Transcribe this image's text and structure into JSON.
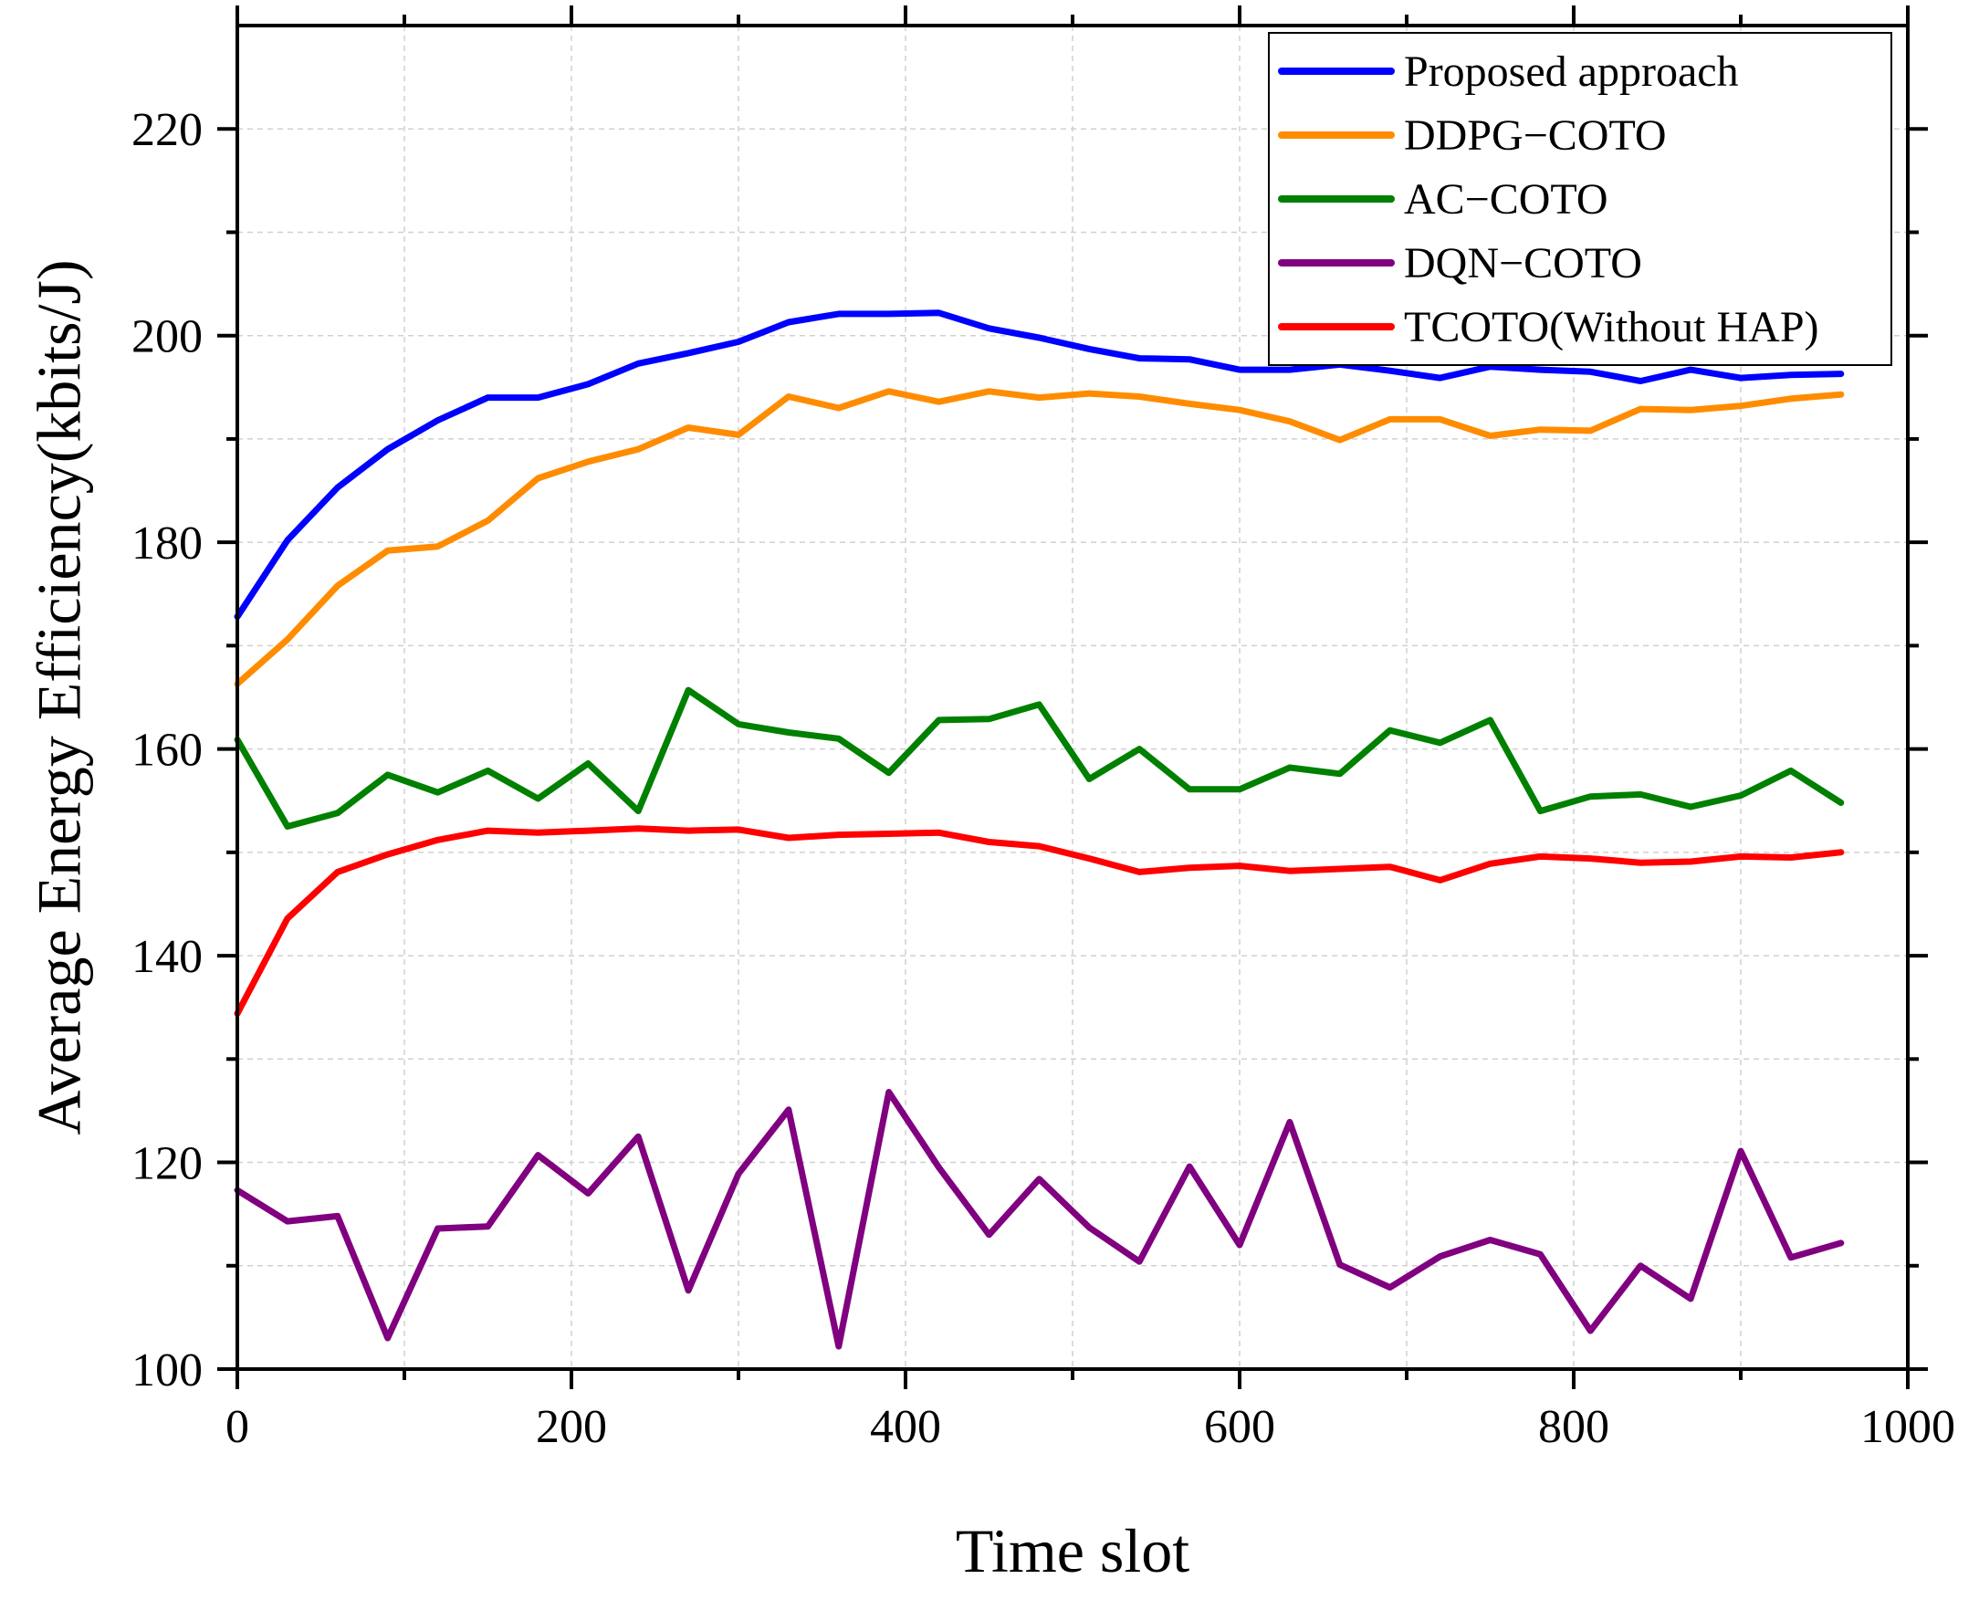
{
  "chart_data": {
    "type": "line",
    "title": "",
    "xlabel": "Time slot",
    "ylabel": "Average Energy Efficiency(kbits/J)",
    "xlim": [
      0,
      1000
    ],
    "ylim": [
      100,
      230
    ],
    "xticks": [
      0,
      200,
      400,
      600,
      800,
      1000
    ],
    "yticks": [
      100,
      120,
      140,
      160,
      180,
      200,
      220
    ],
    "xtick_labels": [
      "0",
      "200",
      "400",
      "600",
      "800",
      "1000"
    ],
    "ytick_labels": [
      "100",
      "120",
      "140",
      "160",
      "180",
      "200",
      "220"
    ],
    "grid": true,
    "legend_position": "top-right",
    "x": [
      0,
      30,
      60,
      90,
      120,
      150,
      180,
      210,
      240,
      270,
      300,
      330,
      360,
      390,
      420,
      450,
      480,
      510,
      540,
      570,
      600,
      630,
      660,
      690,
      720,
      750,
      780,
      810,
      840,
      870,
      900,
      930,
      960
    ],
    "series": [
      {
        "name": "Proposed approach",
        "color": "#0000ff",
        "values": [
          172.8,
          180.2,
          185.3,
          189.0,
          191.8,
          194.0,
          194.0,
          195.3,
          197.3,
          198.3,
          199.4,
          201.3,
          202.1,
          202.1,
          202.2,
          200.7,
          199.8,
          198.7,
          197.8,
          197.7,
          196.7,
          196.7,
          197.2,
          196.6,
          195.9,
          197.0,
          196.7,
          196.5,
          195.6,
          196.7,
          195.9,
          196.2,
          196.3
        ]
      },
      {
        "name": "DDPG−COTO",
        "color": "#ff8c00",
        "values": [
          166.3,
          170.6,
          175.8,
          179.2,
          179.6,
          182.1,
          186.2,
          187.8,
          189.0,
          191.1,
          190.4,
          194.1,
          193.0,
          194.6,
          193.6,
          194.6,
          194.0,
          194.4,
          194.1,
          193.4,
          192.8,
          191.7,
          189.9,
          191.9,
          191.9,
          190.3,
          190.9,
          190.8,
          192.9,
          192.8,
          193.2,
          193.9,
          194.3
        ]
      },
      {
        "name": "AC−COTO",
        "color": "#008000",
        "values": [
          160.9,
          152.5,
          153.8,
          157.5,
          155.8,
          157.9,
          155.2,
          158.6,
          154.0,
          165.7,
          162.4,
          161.6,
          161.0,
          157.7,
          162.8,
          162.9,
          164.3,
          157.1,
          160.0,
          156.1,
          156.1,
          158.2,
          157.6,
          161.8,
          160.6,
          162.8,
          154.0,
          155.4,
          155.6,
          154.4,
          155.5,
          157.9,
          154.8
        ]
      },
      {
        "name": "DQN−COTO",
        "color": "#800080",
        "values": [
          117.3,
          114.3,
          114.8,
          103.0,
          113.6,
          113.8,
          120.7,
          117.0,
          122.5,
          107.6,
          118.9,
          125.1,
          102.2,
          126.8,
          119.5,
          113.0,
          118.4,
          113.7,
          110.4,
          119.6,
          112.0,
          123.9,
          110.1,
          107.9,
          110.9,
          112.5,
          111.1,
          103.7,
          110.0,
          106.8,
          121.1,
          110.8,
          112.2
        ]
      },
      {
        "name": "TCOTO(Without HAP)",
        "color": "#ff0000",
        "values": [
          134.4,
          143.6,
          148.1,
          149.8,
          151.2,
          152.1,
          151.9,
          152.1,
          152.3,
          152.1,
          152.2,
          151.4,
          151.7,
          151.8,
          151.9,
          151.0,
          150.6,
          149.4,
          148.1,
          148.5,
          148.7,
          148.2,
          148.4,
          148.6,
          147.3,
          148.9,
          149.6,
          149.4,
          149.0,
          149.1,
          149.6,
          149.5,
          150.0
        ]
      }
    ]
  }
}
